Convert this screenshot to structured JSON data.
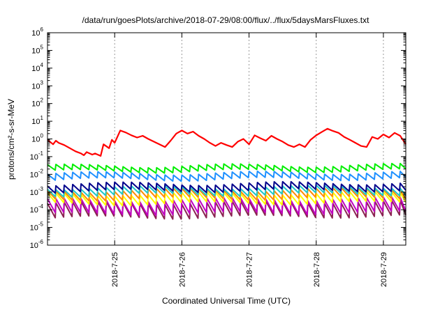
{
  "chart_data": {
    "type": "line",
    "title": "/data/run/goesPlots/archive/2018-07-29/08:00/flux/../flux/5daysMarsFluxes.txt",
    "xlabel": "Coordinated Universal Time (UTC)",
    "ylabel": "protons/cm²-s-sr-MeV",
    "y_scale": "log",
    "ylim": [
      1e-06,
      1000000.0
    ],
    "y_ticks": [
      {
        "value": -6,
        "base": "10",
        "exp": "-6"
      },
      {
        "value": -5,
        "base": "10",
        "exp": "-5"
      },
      {
        "value": -4,
        "base": "10",
        "exp": "-4"
      },
      {
        "value": -3,
        "base": "10",
        "exp": "-3"
      },
      {
        "value": -2,
        "base": "10",
        "exp": "-2"
      },
      {
        "value": -1,
        "base": "10",
        "exp": "-1"
      },
      {
        "value": 0,
        "base": "10",
        "exp": "0"
      },
      {
        "value": 1,
        "base": "10",
        "exp": "1"
      },
      {
        "value": 2,
        "base": "10",
        "exp": "2"
      },
      {
        "value": 3,
        "base": "10",
        "exp": "3"
      },
      {
        "value": 4,
        "base": "10",
        "exp": "4"
      },
      {
        "value": 5,
        "base": "10",
        "exp": "5"
      },
      {
        "value": 6,
        "base": "10",
        "exp": "6"
      }
    ],
    "xlim": [
      "2018-07-24T00:00",
      "2018-07-29T08:00"
    ],
    "x_ticks": [
      "2018-7-25",
      "2018-7-26",
      "2018-7-27",
      "2018-7-28",
      "2018-7-29"
    ],
    "grid": true,
    "series": [
      {
        "color": "#ff0000",
        "x": [
          "2018-07-24T00:00",
          "2018-07-24T02:00",
          "2018-07-24T03:00",
          "2018-07-24T04:00",
          "2018-07-24T06:00",
          "2018-07-24T08:00",
          "2018-07-24T10:00",
          "2018-07-24T12:00",
          "2018-07-24T13:00",
          "2018-07-24T14:00",
          "2018-07-24T16:00",
          "2018-07-24T17:00",
          "2018-07-24T19:00",
          "2018-07-24T20:00",
          "2018-07-24T22:00",
          "2018-07-24T23:00",
          "2018-07-25T00:00",
          "2018-07-25T02:00",
          "2018-07-25T04:00",
          "2018-07-25T06:00",
          "2018-07-25T08:00",
          "2018-07-25T10:00",
          "2018-07-25T12:00",
          "2018-07-25T14:00",
          "2018-07-25T16:00",
          "2018-07-25T18:00",
          "2018-07-25T20:00",
          "2018-07-25T22:00",
          "2018-07-26T00:00",
          "2018-07-26T02:00",
          "2018-07-26T04:00",
          "2018-07-26T06:00",
          "2018-07-26T08:00",
          "2018-07-26T10:00",
          "2018-07-26T12:00",
          "2018-07-26T14:00",
          "2018-07-26T16:00",
          "2018-07-26T18:00",
          "2018-07-26T20:00",
          "2018-07-26T22:00",
          "2018-07-27T00:00",
          "2018-07-27T02:00",
          "2018-07-27T04:00",
          "2018-07-27T06:00",
          "2018-07-27T08:00",
          "2018-07-27T10:00",
          "2018-07-27T12:00",
          "2018-07-27T14:00",
          "2018-07-27T16:00",
          "2018-07-27T18:00",
          "2018-07-27T20:00",
          "2018-07-27T22:00",
          "2018-07-28T00:00",
          "2018-07-28T02:00",
          "2018-07-28T04:00",
          "2018-07-28T06:00",
          "2018-07-28T08:00",
          "2018-07-28T10:00",
          "2018-07-28T12:00",
          "2018-07-28T14:00",
          "2018-07-28T16:00",
          "2018-07-28T18:00",
          "2018-07-28T20:00",
          "2018-07-28T22:00",
          "2018-07-29T00:00",
          "2018-07-29T02:00",
          "2018-07-29T04:00",
          "2018-07-29T06:00",
          "2018-07-29T08:00"
        ],
        "y": [
          0.9,
          0.5,
          0.8,
          0.6,
          0.45,
          0.3,
          0.2,
          0.15,
          0.12,
          0.18,
          0.13,
          0.15,
          0.11,
          0.5,
          0.3,
          0.9,
          0.6,
          3.0,
          2.3,
          1.6,
          1.2,
          1.5,
          1.0,
          0.7,
          0.5,
          0.35,
          0.8,
          2.0,
          3.0,
          2.0,
          2.6,
          1.5,
          1.0,
          0.6,
          0.4,
          0.6,
          0.45,
          0.35,
          0.7,
          1.0,
          0.5,
          1.6,
          1.1,
          0.8,
          1.5,
          1.0,
          0.7,
          0.45,
          0.35,
          0.5,
          0.35,
          0.9,
          1.6,
          2.5,
          3.8,
          2.8,
          2.2,
          1.3,
          0.9,
          0.6,
          0.4,
          0.35,
          1.3,
          1.0,
          1.8,
          1.2,
          2.2,
          1.5,
          0.5
        ]
      }
    ],
    "sawtooth_series": [
      {
        "color": "#00ee00",
        "base": 0.021,
        "spread": 2.0,
        "trend": 0.025,
        "period_hours": 3
      },
      {
        "color": "#1e90ff",
        "base": 0.0075,
        "spread": 2.2,
        "trend": 0.03,
        "period_hours": 3
      },
      {
        "color": "#00008b",
        "base": 0.0018,
        "spread": 2.5,
        "trend": 0.03,
        "period_hours": 3
      },
      {
        "color": "#20c8c8",
        "base": 0.0011,
        "spread": 2.6,
        "trend": 0.03,
        "period_hours": 3
      },
      {
        "color": "#ff8c00",
        "base": 0.0007,
        "spread": 3.0,
        "trend": 0.04,
        "period_hours": 3
      },
      {
        "color": "#ffff00",
        "base": 0.0004,
        "spread": 3.5,
        "trend": 0.04,
        "period_hours": 3
      },
      {
        "color": "#c000c0",
        "base": 0.00014,
        "spread": 6.0,
        "trend": 0.05,
        "period_hours": 3
      },
      {
        "color": "#8b2252",
        "base": 9e-05,
        "spread": 6.5,
        "trend": 0.05,
        "period_hours": 3
      }
    ]
  }
}
